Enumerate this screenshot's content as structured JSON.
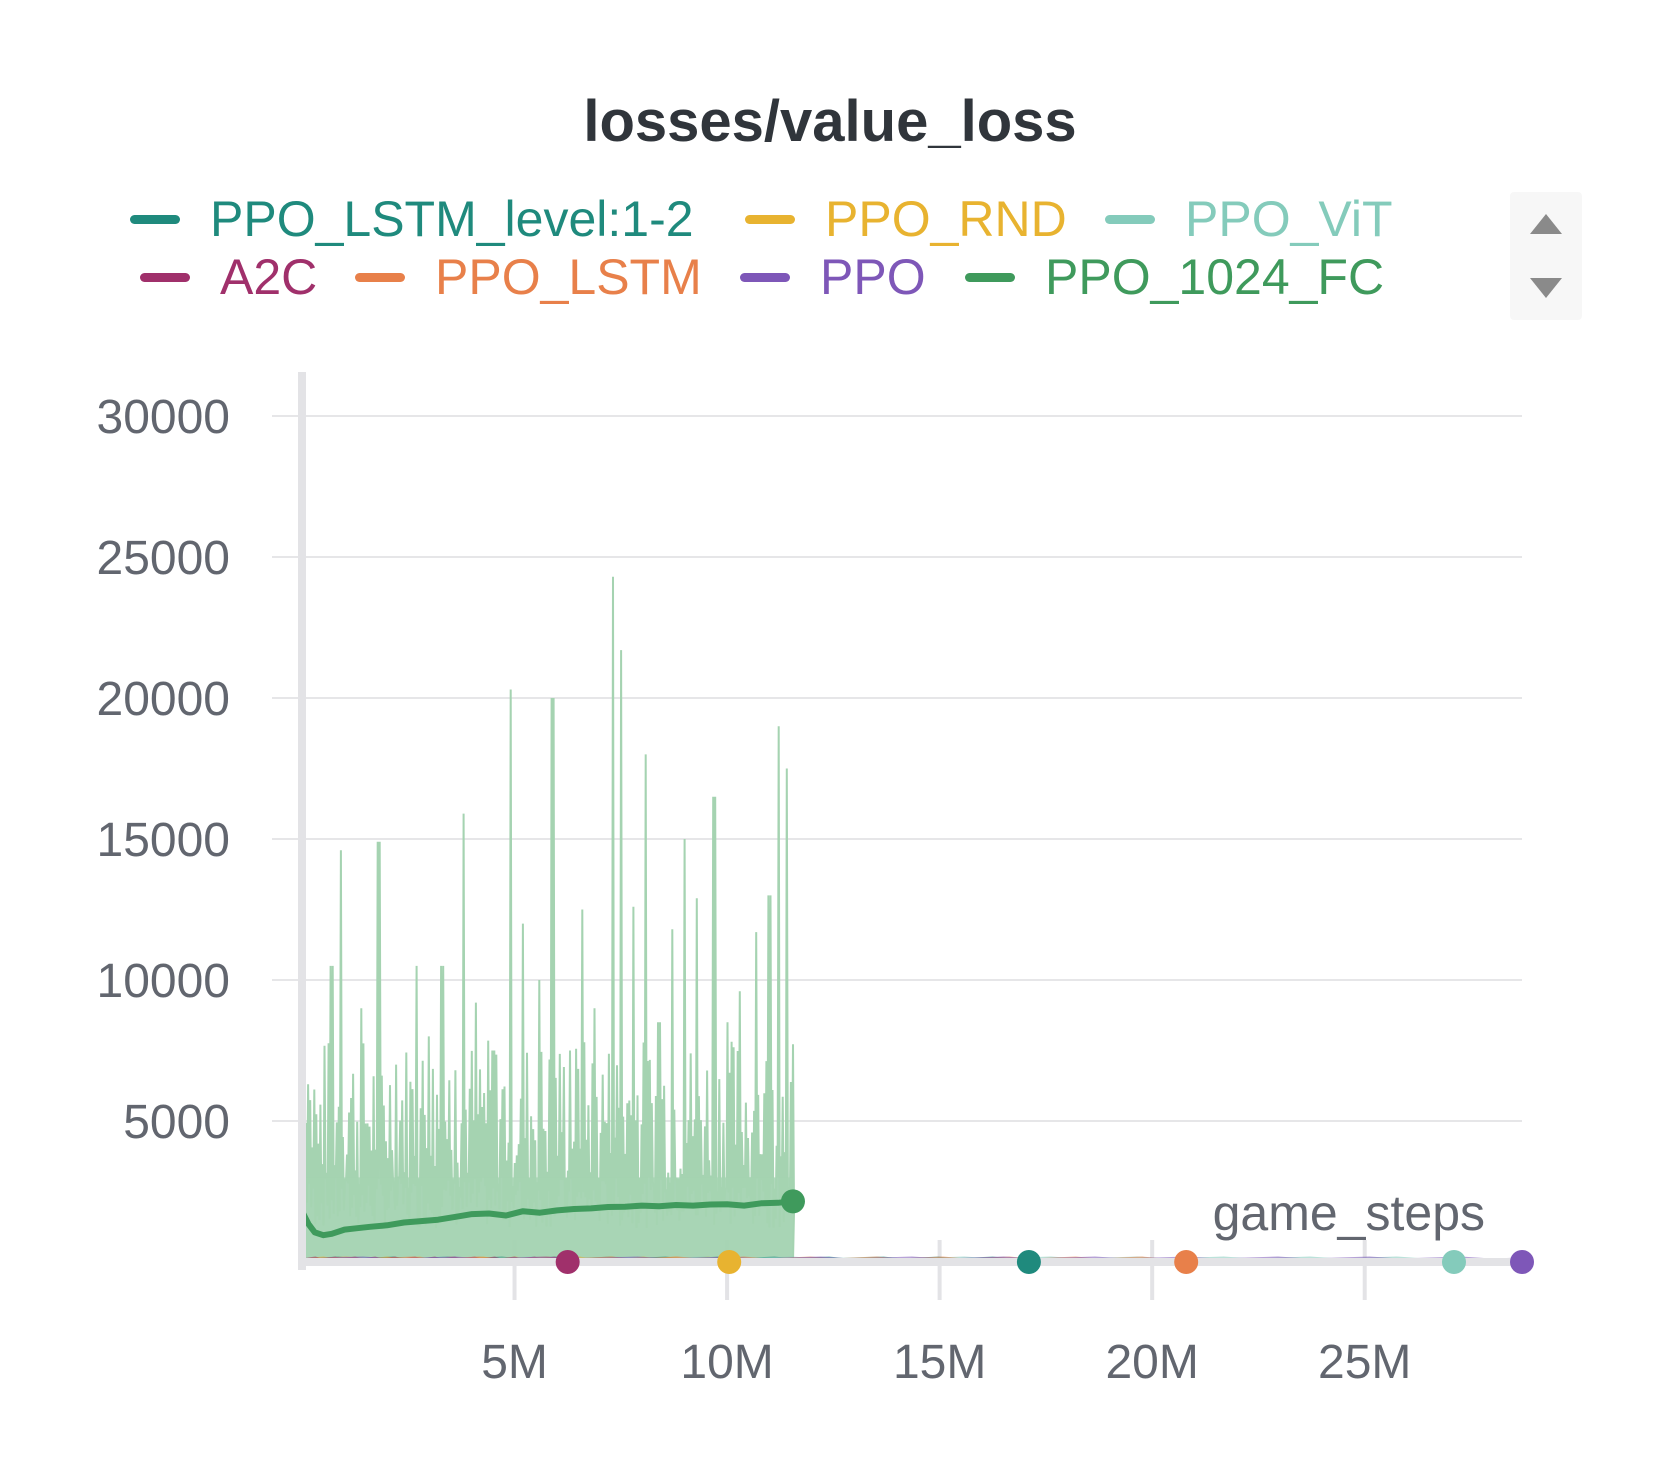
{
  "chart_data": {
    "type": "line",
    "title": "losses/value_loss",
    "xlabel": "game_steps",
    "ylabel": "",
    "xlim": [
      0,
      28700000
    ],
    "ylim": [
      0,
      30000
    ],
    "x_ticks": [
      {
        "value": 5000000,
        "label": "5M"
      },
      {
        "value": 10000000,
        "label": "10M"
      },
      {
        "value": 15000000,
        "label": "15M"
      },
      {
        "value": 20000000,
        "label": "20M"
      },
      {
        "value": 25000000,
        "label": "25M"
      }
    ],
    "y_ticks": [
      {
        "value": 5000,
        "label": "5000"
      },
      {
        "value": 10000,
        "label": "10000"
      },
      {
        "value": 15000,
        "label": "15000"
      },
      {
        "value": 20000,
        "label": "20000"
      },
      {
        "value": 25000,
        "label": "25000"
      },
      {
        "value": 30000,
        "label": "30000"
      }
    ],
    "grid": true,
    "legend_position": "top",
    "series": [
      {
        "name": "PPO_LSTM_level:1-2",
        "color": "#1f8a7d",
        "end_x": 17100000,
        "end_y": 0
      },
      {
        "name": "PPO_RND",
        "color": "#e8b330",
        "end_x": 10050000,
        "end_y": 0
      },
      {
        "name": "PPO_ViT",
        "color": "#84cbbb",
        "end_x": 27100000,
        "end_y": 0
      },
      {
        "name": "A2C",
        "color": "#a0306b",
        "end_x": 6250000,
        "end_y": 0
      },
      {
        "name": "PPO_LSTM",
        "color": "#e8804a",
        "end_x": 20800000,
        "end_y": 0
      },
      {
        "name": "PPO",
        "color": "#7e57b8",
        "end_x": 28700000,
        "end_y": 0
      },
      {
        "name": "PPO_1024_FC",
        "color": "#3f9a5c",
        "band_color": "#a5d3b1",
        "smoothed": {
          "x": [
            0,
            150000,
            300000,
            500000,
            700000,
            1000000,
            1300000,
            1600000,
            2000000,
            2400000,
            2800000,
            3200000,
            3600000,
            4000000,
            4400000,
            4800000,
            5200000,
            5600000,
            6000000,
            6400000,
            6800000,
            7200000,
            7600000,
            8000000,
            8400000,
            8800000,
            9200000,
            9600000,
            10000000,
            10400000,
            10800000,
            11200000,
            11500000
          ],
          "y": [
            1800,
            1350,
            1050,
            950,
            1000,
            1150,
            1200,
            1250,
            1300,
            1400,
            1450,
            1500,
            1600,
            1700,
            1720,
            1650,
            1800,
            1750,
            1830,
            1880,
            1900,
            1950,
            1960,
            2000,
            1980,
            2020,
            2000,
            2040,
            2050,
            2000,
            2080,
            2100,
            2150
          ]
        },
        "raw_peaks": {
          "x": [
            150000,
            400000,
            700000,
            900000,
            1100000,
            1400000,
            1600000,
            1800000,
            2200000,
            2700000,
            3000000,
            3300000,
            3600000,
            3800000,
            4100000,
            4500000,
            4900000,
            5200000,
            5600000,
            5900000,
            6300000,
            6600000,
            6900000,
            7300000,
            7500000,
            7800000,
            8100000,
            8400000,
            8700000,
            9000000,
            9300000,
            9700000,
            10000000,
            10300000,
            10700000,
            11000000,
            11200000,
            11400000
          ],
          "y": [
            6300,
            4200,
            10500,
            14600,
            5300,
            9000,
            4800,
            14900,
            7000,
            10500,
            8000,
            10500,
            6800,
            15900,
            9200,
            7500,
            20300,
            12000,
            10000,
            20000,
            7500,
            12500,
            9000,
            24300,
            21700,
            12600,
            18000,
            8500,
            11800,
            15000,
            12900,
            16500,
            8500,
            9600,
            11700,
            13000,
            19000,
            17500
          ]
        },
        "end_x": 11550000,
        "end_y": 2150
      }
    ]
  }
}
